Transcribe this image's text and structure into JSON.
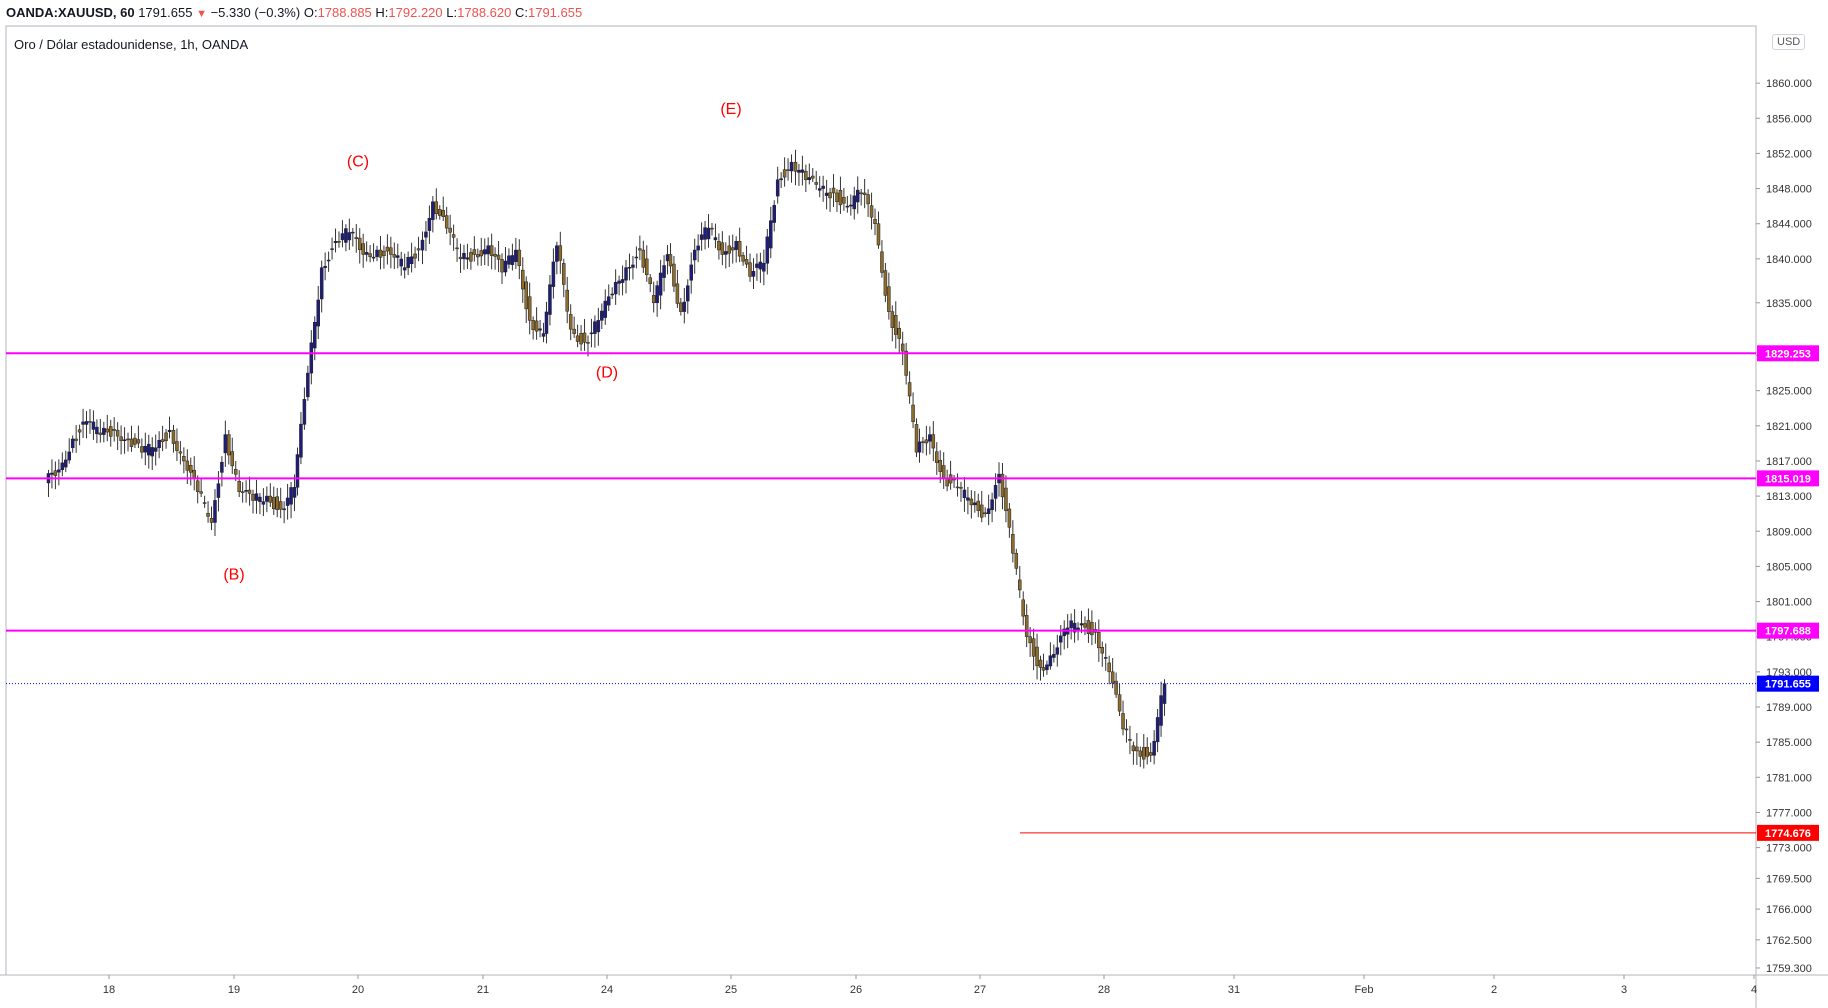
{
  "header": {
    "symbol": "OANDA:XAUUSD, 60",
    "last": "1791.655",
    "arrow": "▼",
    "change": "−5.330 (−0.3%)",
    "o_label": "O:",
    "o_value": "1788.885",
    "h_label": "H:",
    "h_value": "1792.220",
    "l_label": "L:",
    "l_value": "1788.620",
    "c_label": "C:",
    "c_value": "1791.655"
  },
  "chart_title": "Oro / Dólar estadounidense, 1h, OANDA",
  "currency_badge": "USD",
  "colors": {
    "up_candle": "#1e1e7a",
    "down_candle": "#8b6b2e",
    "wick": "#333333",
    "horizontal_line": "#ff00ff",
    "price_badge_magenta": "#ff00ff",
    "last_price": "#0000ff",
    "target_line": "#ff0000",
    "wave_label": "#ff0000"
  },
  "chart_data": {
    "type": "candlestick",
    "title": "Oro / Dólar estadounidense, 1h, OANDA",
    "ylim": [
      1758.5,
      1866.5
    ],
    "y_ticks": [
      "1860.000",
      "1856.000",
      "1852.000",
      "1848.000",
      "1844.000",
      "1840.000",
      "1835.000",
      "1829.000",
      "1825.000",
      "1821.000",
      "1817.000",
      "1813.000",
      "1809.000",
      "1805.000",
      "1801.000",
      "1797.000",
      "1793.000",
      "1789.000",
      "1785.000",
      "1781.000",
      "1777.000",
      "1773.000",
      "1769.500",
      "1766.000",
      "1762.500",
      "1759.300"
    ],
    "x_ticks": [
      "18",
      "19",
      "20",
      "21",
      "24",
      "25",
      "26",
      "27",
      "28",
      "31",
      "Feb",
      "2",
      "3",
      "4"
    ],
    "grid": false,
    "horizontal_lines": [
      {
        "price": 1829.253,
        "label": "1829.253",
        "color": "#ff00ff"
      },
      {
        "price": 1815.019,
        "label": "1815.019",
        "color": "#ff00ff"
      },
      {
        "price": 1797.688,
        "label": "1797.688",
        "color": "#ff00ff"
      }
    ],
    "target_line": {
      "price": 1774.676,
      "label": "1774.676",
      "from_day": "27"
    },
    "last_price": {
      "price": 1791.655,
      "label": "1791.655"
    },
    "wave_labels": [
      {
        "text": "(B)",
        "day": "19",
        "price": 1803.5
      },
      {
        "text": "(C)",
        "day": "20",
        "price": 1850.5
      },
      {
        "text": "(D)",
        "day": "24",
        "price": 1826.5
      },
      {
        "text": "(E)",
        "day": "25",
        "price": 1856.5
      }
    ],
    "series": [
      {
        "day": "18",
        "close": [
          1816.0,
          1819.5,
          1821.5,
          1820.0,
          1820.5,
          1819.5,
          1818.0,
          1818.5,
          1820.5
        ]
      },
      {
        "day": "19",
        "close": [
          1817.0,
          1813.5,
          1810.0,
          1820.0,
          1813.5,
          1812.5,
          1813.0,
          1811.5,
          1814.0
        ]
      },
      {
        "day": "20",
        "close": [
          1827.0,
          1839.0,
          1842.0,
          1843.0,
          1840.5,
          1841.0,
          1840.5,
          1839.0,
          1841.0
        ]
      },
      {
        "day": "21",
        "close": [
          1846.5,
          1843.5,
          1840.0,
          1840.5,
          1841.5,
          1838.5,
          1841.0,
          1833.0,
          1831.5
        ]
      },
      {
        "day": "24",
        "close": [
          1841.5,
          1832.0,
          1830.5,
          1833.0,
          1836.0,
          1839.0,
          1841.0,
          1835.0,
          1840.5
        ]
      },
      {
        "day": "25",
        "close": [
          1834.0,
          1841.0,
          1843.5,
          1840.5,
          1842.0,
          1838.0,
          1839.5,
          1849.0,
          1851.0
        ]
      },
      {
        "day": "26",
        "close": [
          1849.0,
          1848.0,
          1847.5,
          1846.0,
          1847.5,
          1844.0,
          1834.0,
          1829.5,
          1818.0
        ]
      },
      {
        "day": "27",
        "close": [
          1820.0,
          1815.0,
          1814.0,
          1812.0,
          1811.0,
          1815.5,
          1806.5,
          1797.0,
          1793.5
        ]
      },
      {
        "day": "28",
        "close": [
          1795.0,
          1798.0,
          1798.5,
          1797.5,
          1793.0,
          1786.5,
          1784.0,
          1783.5,
          1791.655
        ]
      }
    ]
  }
}
